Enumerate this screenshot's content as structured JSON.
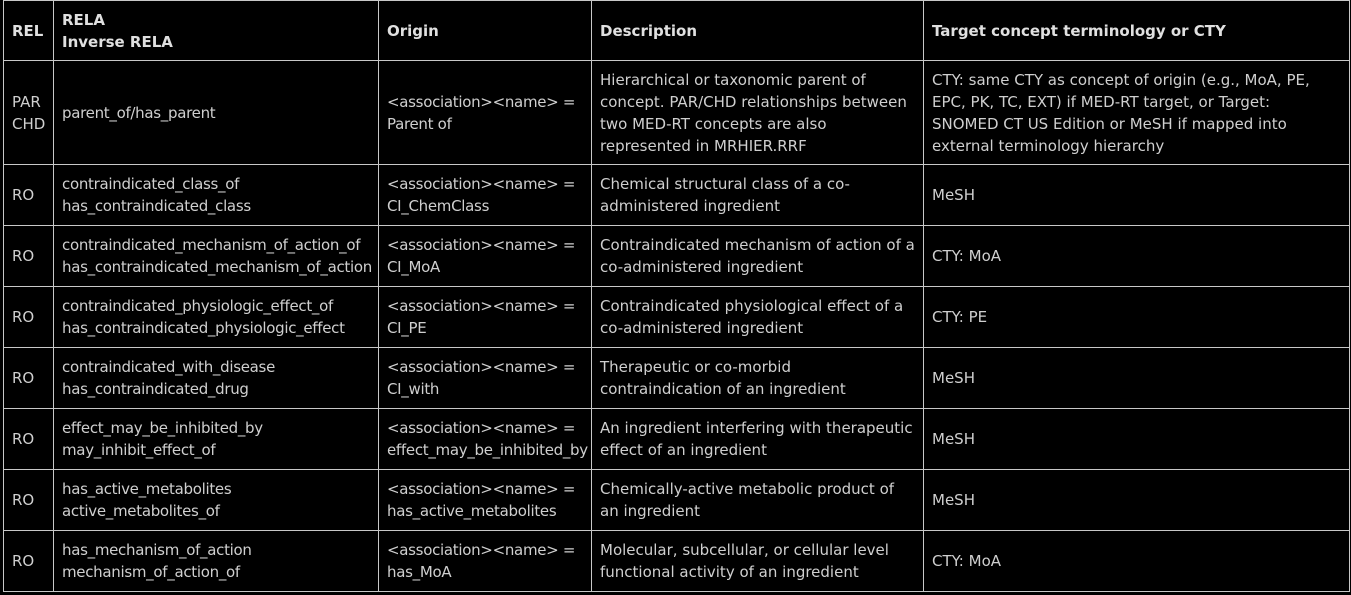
{
  "headers": {
    "rel": "REL",
    "rela": "RELA",
    "inverse_rela": "Inverse RELA",
    "origin": "Origin",
    "description": "Description",
    "target": "Target concept terminology or CTY"
  },
  "rows": [
    {
      "rel_lines": [
        "PAR",
        "CHD"
      ],
      "rela_lines": [
        "parent_of/has_parent"
      ],
      "origin_lines": [
        "<association><name> =",
        "Parent of"
      ],
      "description": "Hierarchical or taxonomic parent of concept. PAR/CHD relationships between two MED-RT concepts are also represented in MRHIER.RRF",
      "target": "CTY: same CTY as concept of origin (e.g., MoA, PE, EPC, PK, TC, EXT) if MED-RT target, or Target: SNOMED CT US Edition or MeSH if mapped into external terminology hierarchy"
    },
    {
      "rel_lines": [
        "RO"
      ],
      "rela_lines": [
        "contraindicated_class_of",
        "has_contraindicated_class"
      ],
      "origin_lines": [
        "<association><name> =",
        "CI_ChemClass"
      ],
      "description": "Chemical structural class of a co-administered ingredient",
      "target": "MeSH"
    },
    {
      "rel_lines": [
        "RO"
      ],
      "rela_lines": [
        "contraindicated_mechanism_of_action_of",
        "has_contraindicated_mechanism_of_action"
      ],
      "origin_lines": [
        "<association><name> =",
        "CI_MoA"
      ],
      "description": "Contraindicated mechanism of action of a co-administered ingredient",
      "target": "CTY: MoA"
    },
    {
      "rel_lines": [
        "RO"
      ],
      "rela_lines": [
        "contraindicated_physiologic_effect_of",
        "has_contraindicated_physiologic_effect"
      ],
      "origin_lines": [
        "<association><name> =",
        "CI_PE"
      ],
      "description": "Contraindicated physiological effect of a co-administered ingredient",
      "target": "CTY: PE"
    },
    {
      "rel_lines": [
        "RO"
      ],
      "rela_lines": [
        "contraindicated_with_disease",
        "has_contraindicated_drug"
      ],
      "origin_lines": [
        "<association><name> =",
        "CI_with"
      ],
      "description": "Therapeutic or co-morbid contraindication of an ingredient",
      "target": "MeSH"
    },
    {
      "rel_lines": [
        "RO"
      ],
      "rela_lines": [
        "effect_may_be_inhibited_by",
        "may_inhibit_effect_of"
      ],
      "origin_lines": [
        "<association><name> =",
        "effect_may_be_inhibited_by"
      ],
      "description": "An ingredient interfering with therapeutic effect of an ingredient",
      "target": "MeSH"
    },
    {
      "rel_lines": [
        "RO"
      ],
      "rela_lines": [
        "has_active_metabolites",
        "active_metabolites_of"
      ],
      "origin_lines": [
        "<association><name> =",
        "has_active_metabolites"
      ],
      "description": "Chemically-active metabolic product of an ingredient",
      "target": "MeSH"
    },
    {
      "rel_lines": [
        "RO"
      ],
      "rela_lines": [
        "has_mechanism_of_action",
        "mechanism_of_action_of"
      ],
      "origin_lines": [
        "<association><name> =",
        "has_MoA"
      ],
      "description": "Molecular, subcellular, or cellular level functional activity of an ingredient",
      "target": "CTY: MoA"
    }
  ]
}
